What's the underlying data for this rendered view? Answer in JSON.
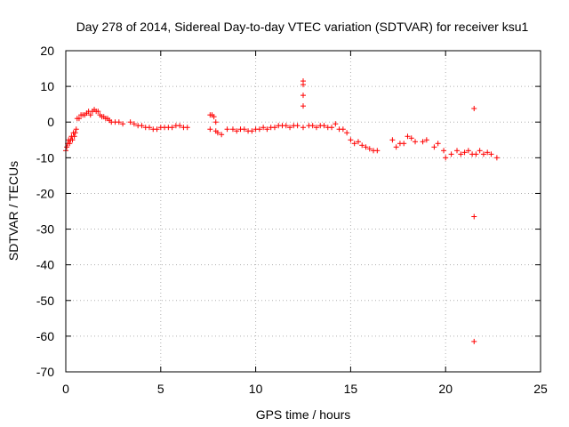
{
  "chart_data": {
    "type": "scatter",
    "title": "Day 278 of 2014, Sidereal Day-to-day VTEC variation (SDTVAR) for receiver ksu1",
    "xlabel": "GPS time / hours",
    "ylabel": "SDTVAR / TECUs",
    "xlim": [
      0,
      25
    ],
    "ylim": [
      -70,
      20
    ],
    "xticks": [
      0,
      5,
      10,
      15,
      20,
      25
    ],
    "yticks": [
      20,
      10,
      0,
      -10,
      -20,
      -30,
      -40,
      -50,
      -60,
      -70
    ],
    "grid": true,
    "marker": "+",
    "color": "#ff0000",
    "series": [
      {
        "name": "SDTVAR",
        "x": [
          0.0,
          0.05,
          0.1,
          0.15,
          0.2,
          0.25,
          0.3,
          0.35,
          0.4,
          0.45,
          0.5,
          0.55,
          0.6,
          0.7,
          0.8,
          0.9,
          1.0,
          1.1,
          1.2,
          1.3,
          1.4,
          1.5,
          1.6,
          1.7,
          1.8,
          1.9,
          2.0,
          2.1,
          2.2,
          2.3,
          2.4,
          2.6,
          2.8,
          3.0,
          3.4,
          3.6,
          3.8,
          4.0,
          4.2,
          4.4,
          4.6,
          4.8,
          5.0,
          5.2,
          5.4,
          5.6,
          5.8,
          6.0,
          6.2,
          6.4,
          7.6,
          7.7,
          7.8,
          7.9,
          8.0,
          7.6,
          7.9,
          8.2,
          8.5,
          8.8,
          9.0,
          9.2,
          9.4,
          9.6,
          9.8,
          10.0,
          10.2,
          10.4,
          10.6,
          10.8,
          11.0,
          11.2,
          11.4,
          11.6,
          11.8,
          12.0,
          12.2,
          12.5,
          12.8,
          13.0,
          13.2,
          13.4,
          13.6,
          13.8,
          14.0,
          14.2,
          14.4,
          14.6,
          14.8,
          15.0,
          15.2,
          15.4,
          15.6,
          15.8,
          16.0,
          16.2,
          16.4,
          17.2,
          17.4,
          17.6,
          17.8,
          18.0,
          18.2,
          18.4,
          18.8,
          19.0,
          19.4,
          19.6,
          19.9,
          20.0,
          20.3,
          20.6,
          20.8,
          21.0,
          21.2,
          21.4,
          21.6,
          21.8,
          22.0,
          22.2,
          22.4,
          22.7,
          12.5,
          12.5,
          12.5,
          12.5,
          21.5,
          21.5,
          21.5
        ],
        "y": [
          -8,
          -7,
          -6,
          -5,
          -6,
          -5,
          -4,
          -5,
          -3,
          -4,
          -3,
          -2,
          1,
          1,
          2,
          2,
          2,
          2.5,
          3,
          2,
          3,
          3.5,
          3,
          3,
          2,
          1.5,
          1.5,
          1,
          1,
          0.5,
          0,
          0,
          0,
          -0.5,
          0,
          -0.5,
          -1,
          -1,
          -1.5,
          -1.5,
          -2,
          -2,
          -1.5,
          -1.5,
          -1.5,
          -1.5,
          -1,
          -1,
          -1.5,
          -1.5,
          2,
          2,
          1.5,
          0,
          -3,
          -2,
          -2.5,
          -3.5,
          -2,
          -2,
          -2.5,
          -2,
          -2,
          -2.5,
          -2.5,
          -2,
          -2,
          -1.5,
          -2,
          -1.5,
          -1.5,
          -1,
          -1,
          -1,
          -1.5,
          -1,
          -1,
          -1.5,
          -1,
          -1,
          -1.5,
          -1,
          -1,
          -1.5,
          -1.5,
          -0.5,
          -2,
          -2,
          -3,
          -5,
          -6,
          -5.5,
          -6.5,
          -7,
          -7.5,
          -8,
          -8,
          -5,
          -7,
          -6,
          -6,
          -4,
          -4.5,
          -5.5,
          -5.5,
          -5,
          -7,
          -6,
          -8,
          -10,
          -9,
          -8,
          -9,
          -8.5,
          -8,
          -9,
          -9,
          -8,
          -9,
          -8.5,
          -9,
          -10,
          4.5,
          7.5,
          10.5,
          11.5,
          3.8,
          -26.5,
          -61.5
        ]
      }
    ]
  }
}
